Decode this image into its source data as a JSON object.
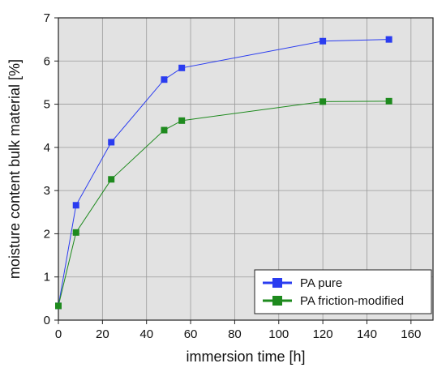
{
  "chart_data": {
    "type": "line",
    "title": "",
    "xlabel": "immersion time [h]",
    "ylabel": "moisture content bulk material [%]",
    "xlim": [
      0,
      170
    ],
    "ylim": [
      0,
      7
    ],
    "x_ticks": [
      0,
      20,
      40,
      60,
      80,
      100,
      120,
      140,
      160
    ],
    "y_ticks": [
      0,
      1,
      2,
      3,
      4,
      5,
      6,
      7
    ],
    "grid": true,
    "legend_position": "bottom-right",
    "series": [
      {
        "name": "PA pure",
        "color": "#2a3cf0",
        "marker": "square",
        "x": [
          0,
          8,
          24,
          48,
          56,
          120,
          150
        ],
        "y": [
          0.33,
          2.66,
          4.12,
          5.57,
          5.84,
          6.46,
          6.5
        ]
      },
      {
        "name": "PA friction-modified",
        "color": "#1e8a1e",
        "marker": "square",
        "x": [
          0,
          8,
          24,
          48,
          56,
          120,
          150
        ],
        "y": [
          0.33,
          2.03,
          3.26,
          4.4,
          4.62,
          5.06,
          5.07
        ]
      }
    ]
  }
}
